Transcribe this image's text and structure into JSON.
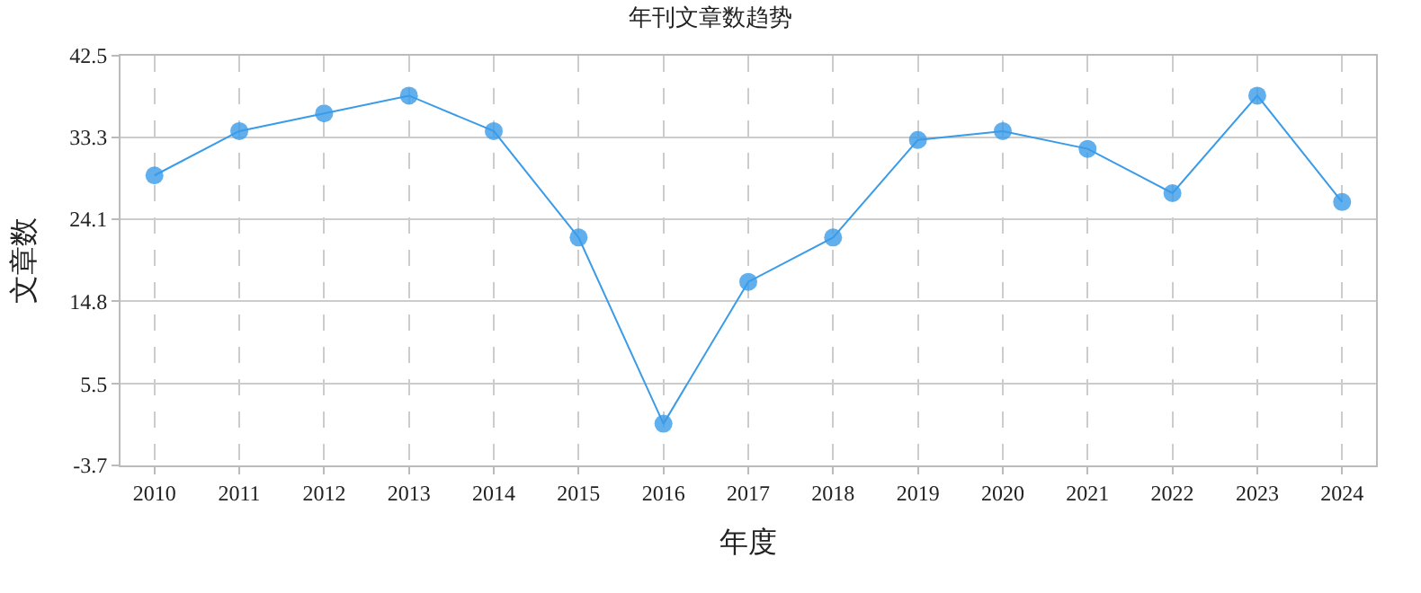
{
  "chart_data": {
    "type": "line",
    "title": "年刊文章数趋势",
    "xlabel": "年度",
    "ylabel": "文章数",
    "categories": [
      "2010",
      "2011",
      "2012",
      "2013",
      "2014",
      "2015",
      "2016",
      "2017",
      "2018",
      "2019",
      "2020",
      "2021",
      "2022",
      "2023",
      "2024"
    ],
    "series": [
      {
        "color": "#3a9be8",
        "values": [
          29,
          34,
          36,
          38,
          34,
          22,
          1,
          17,
          22,
          33,
          34,
          32,
          27,
          38,
          26
        ]
      }
    ],
    "ylim": [
      -3.7,
      42.5
    ],
    "yticks": [
      -3.7,
      5.5,
      14.8,
      24.1,
      33.3,
      42.5
    ],
    "grid": true,
    "marker": "circle",
    "line_style": "solid",
    "legend": false
  }
}
